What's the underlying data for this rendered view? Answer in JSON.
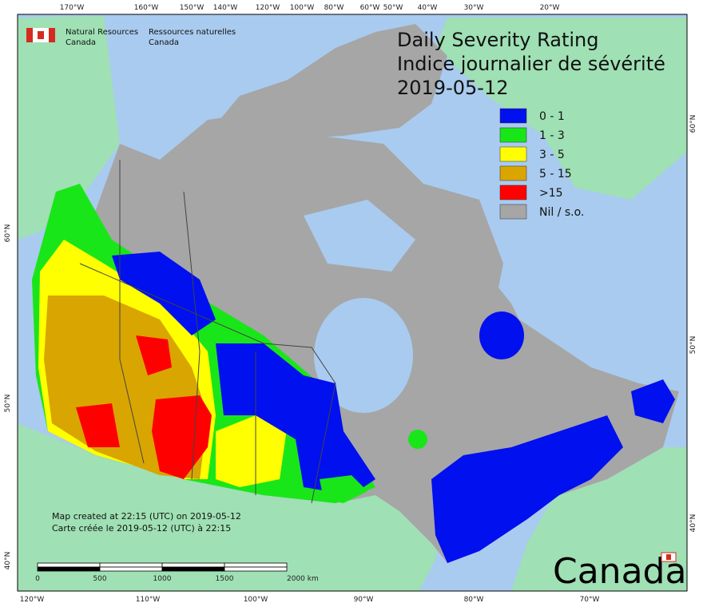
{
  "agency": {
    "en_line1": "Natural Resources",
    "en_line2": "Canada",
    "fr_line1": "Ressources naturelles",
    "fr_line2": "Canada"
  },
  "title": {
    "line1": "Daily Severity Rating",
    "line2": "Indice journalier de sévérité",
    "date": "2019-05-12"
  },
  "legend": [
    {
      "label": "0 - 1",
      "color": "#0010ee"
    },
    {
      "label": "1 - 3",
      "color": "#19e619"
    },
    {
      "label": "3 - 5",
      "color": "#ffff00"
    },
    {
      "label": "5 - 15",
      "color": "#d9a500"
    },
    {
      "label": ">15",
      "color": "#ff0000"
    },
    {
      "label": "Nil / s.o.",
      "color": "#a6a6a6"
    }
  ],
  "footer": {
    "created_en": "Map created at 22:15 (UTC) on 2019-05-12",
    "created_fr": "Carte créée le 2019-05-12 (UTC) à 22:15"
  },
  "scale_bar": {
    "labels": [
      "0",
      "500",
      "1000",
      "1500",
      "2000  km"
    ]
  },
  "wordmark": "Canada",
  "graticule": {
    "top": [
      "170°W",
      "160°W",
      "150°W",
      "140°W",
      "120°W",
      "100°W",
      "80°W",
      "60°W",
      "50°W",
      "40°W",
      "30°W",
      "20°W"
    ],
    "bottom": [
      "120°W",
      "110°W",
      "100°W",
      "90°W",
      "80°W",
      "70°W"
    ],
    "left": [
      "60°N",
      "50°N",
      "40°N"
    ],
    "right": [
      "60°N",
      "50°N",
      "40°N"
    ]
  }
}
